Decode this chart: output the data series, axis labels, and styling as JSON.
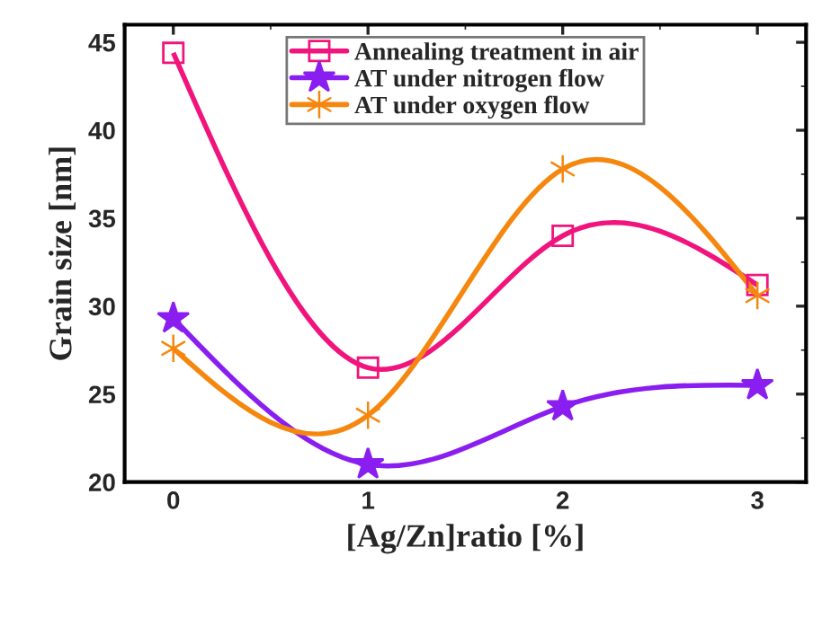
{
  "chart_data": {
    "type": "line",
    "xlabel": "[Ag/Zn]ratio [%]",
    "ylabel": "Grain size [nm]",
    "x": [
      0,
      1,
      2,
      3
    ],
    "xlim": [
      -0.25,
      3.25
    ],
    "xticks": [
      0,
      1,
      2,
      3
    ],
    "ylim": [
      20,
      46
    ],
    "yticks": [
      20,
      25,
      30,
      35,
      40,
      45
    ],
    "legend": "top",
    "grid": false,
    "series": [
      {
        "name": "Annealing treatment in air",
        "color": "#f0147c",
        "marker": "square",
        "values": [
          44.4,
          26.5,
          34.0,
          31.2
        ]
      },
      {
        "name": "AT under nitrogen flow",
        "color": "#8a1ef0",
        "marker": "star",
        "values": [
          29.3,
          21.0,
          24.3,
          25.5
        ]
      },
      {
        "name": "AT under oxygen flow",
        "color": "#f5870f",
        "marker": "cross",
        "values": [
          27.6,
          23.8,
          37.8,
          30.6
        ]
      }
    ]
  }
}
